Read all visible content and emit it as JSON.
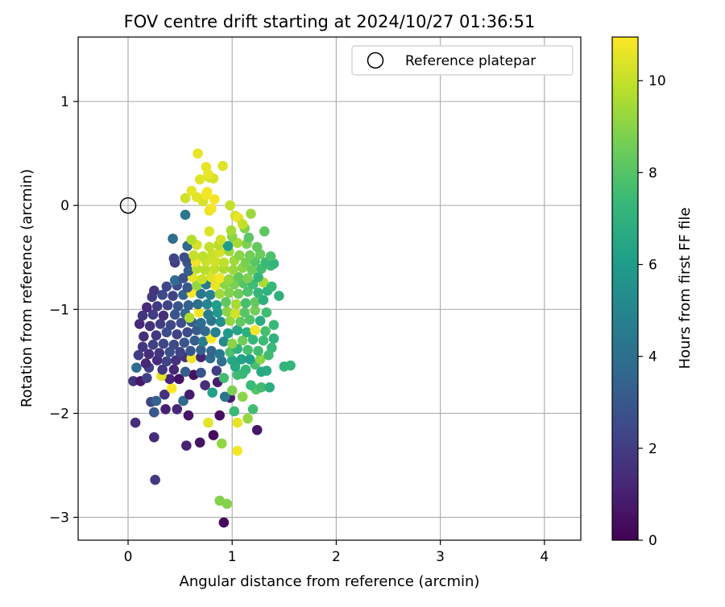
{
  "chart_data": {
    "type": "scatter",
    "title": "FOV centre drift starting at 2024/10/27 01:36:51",
    "xlabel": "Angular distance from reference (arcmin)",
    "ylabel": "Rotation from reference (arcmin)",
    "xlim": [
      -0.48,
      4.35
    ],
    "ylim": [
      -3.22,
      1.62
    ],
    "xticks": [
      0,
      1,
      2,
      3,
      4
    ],
    "yticks": [
      -3,
      -2,
      -1,
      0,
      1
    ],
    "grid": true,
    "legend": {
      "placement": "top-right",
      "entries": [
        "Reference platepar"
      ]
    },
    "reference_point": {
      "x": 0,
      "y": 0,
      "label": "Reference platepar"
    },
    "colorbar": {
      "label": "Hours from first FF file",
      "colormap": "viridis",
      "range": [
        0,
        10.95
      ],
      "ticks": [
        0,
        2,
        4,
        6,
        8,
        10
      ]
    },
    "points": [
      [
        0.92,
        -3.05,
        0.3
      ],
      [
        0.95,
        -2.87,
        8.9
      ],
      [
        0.88,
        -2.84,
        8.9
      ],
      [
        0.26,
        -2.64,
        1.9
      ],
      [
        1.05,
        -2.36,
        10.8
      ],
      [
        0.56,
        -2.31,
        1.1
      ],
      [
        0.69,
        -2.28,
        0.6
      ],
      [
        0.9,
        -2.29,
        9.1
      ],
      [
        0.25,
        -2.23,
        1.4
      ],
      [
        0.82,
        -2.21,
        0.3
      ],
      [
        1.24,
        -2.16,
        0.7
      ],
      [
        0.07,
        -2.09,
        1.5
      ],
      [
        1.05,
        -2.09,
        10.6
      ],
      [
        0.77,
        -2.09,
        10.5
      ],
      [
        1.15,
        -2.05,
        9.2
      ],
      [
        0.58,
        -2.02,
        0.6
      ],
      [
        0.88,
        -2.02,
        0.4
      ],
      [
        0.25,
        -1.99,
        3.0
      ],
      [
        0.36,
        -1.96,
        1.0
      ],
      [
        0.47,
        -1.96,
        1.2
      ],
      [
        1.02,
        -1.98,
        7.4
      ],
      [
        1.2,
        -1.96,
        7.6
      ],
      [
        0.22,
        -1.89,
        2.3
      ],
      [
        0.27,
        -1.88,
        3.5
      ],
      [
        0.53,
        -1.88,
        3.8
      ],
      [
        0.98,
        -1.85,
        0.8
      ],
      [
        1.1,
        -1.84,
        9.0
      ],
      [
        0.35,
        -1.82,
        1.6
      ],
      [
        0.59,
        -1.82,
        0.9
      ],
      [
        0.81,
        -1.8,
        6.2
      ],
      [
        0.93,
        -1.84,
        4.2
      ],
      [
        0.42,
        -1.76,
        10.9
      ],
      [
        1.23,
        -1.77,
        8.0
      ],
      [
        1.28,
        -1.75,
        7.6
      ],
      [
        1.36,
        -1.75,
        6.8
      ],
      [
        1.0,
        -1.78,
        8.8
      ],
      [
        1.18,
        -1.73,
        7.4
      ],
      [
        0.74,
        -1.73,
        1.5
      ],
      [
        0.86,
        -1.7,
        0.9
      ],
      [
        0.05,
        -1.69,
        1.7
      ],
      [
        0.12,
        -1.69,
        0.7
      ],
      [
        0.18,
        -1.66,
        2.1
      ],
      [
        0.4,
        -1.67,
        1.2
      ],
      [
        0.49,
        -1.67,
        0.5
      ],
      [
        0.63,
        -1.63,
        0.5
      ],
      [
        0.7,
        -1.61,
        2.8
      ],
      [
        0.92,
        -1.66,
        7.6
      ],
      [
        1.05,
        -1.63,
        7.6
      ],
      [
        1.1,
        -1.62,
        7.4
      ],
      [
        1.28,
        -1.6,
        6.6
      ],
      [
        1.33,
        -1.59,
        6.7
      ],
      [
        0.32,
        -1.64,
        10.5
      ],
      [
        0.08,
        -1.56,
        3.9
      ],
      [
        0.2,
        -1.56,
        2.2
      ],
      [
        0.33,
        -1.58,
        1.9
      ],
      [
        0.44,
        -1.58,
        1.3
      ],
      [
        0.55,
        -1.6,
        3.2
      ],
      [
        0.85,
        -1.59,
        2.0
      ],
      [
        1.03,
        -1.55,
        6.6
      ],
      [
        1.13,
        -1.58,
        7.3
      ],
      [
        1.22,
        -1.53,
        7.7
      ],
      [
        1.5,
        -1.55,
        7.2
      ],
      [
        1.56,
        -1.54,
        7.2
      ],
      [
        0.17,
        -1.52,
        1.2
      ],
      [
        0.28,
        -1.49,
        1.4
      ],
      [
        0.37,
        -1.5,
        2.3
      ],
      [
        0.46,
        -1.49,
        1.6
      ],
      [
        0.55,
        -1.46,
        1.7
      ],
      [
        0.61,
        -1.47,
        10.7
      ],
      [
        0.7,
        -1.46,
        1.2
      ],
      [
        0.79,
        -1.47,
        3.8
      ],
      [
        0.9,
        -1.5,
        4.0
      ],
      [
        1.0,
        -1.49,
        6.5
      ],
      [
        1.09,
        -1.48,
        6.3
      ],
      [
        1.17,
        -1.48,
        6.2
      ],
      [
        1.27,
        -1.48,
        9.0
      ],
      [
        1.35,
        -1.44,
        7.6
      ],
      [
        0.1,
        -1.44,
        2.0
      ],
      [
        0.2,
        -1.43,
        1.4
      ],
      [
        0.3,
        -1.42,
        1.7
      ],
      [
        0.4,
        -1.41,
        2.7
      ],
      [
        0.5,
        -1.41,
        2.2
      ],
      [
        0.6,
        -1.4,
        3.0
      ],
      [
        0.7,
        -1.39,
        3.4
      ],
      [
        0.8,
        -1.4,
        3.6
      ],
      [
        0.88,
        -1.43,
        4.4
      ],
      [
        0.98,
        -1.41,
        7.8
      ],
      [
        1.05,
        -1.38,
        7.0
      ],
      [
        1.15,
        -1.39,
        7.7
      ],
      [
        1.25,
        -1.4,
        7.6
      ],
      [
        1.38,
        -1.37,
        7.4
      ],
      [
        0.14,
        -1.36,
        1.8
      ],
      [
        0.24,
        -1.34,
        2.1
      ],
      [
        0.34,
        -1.33,
        2.3
      ],
      [
        0.44,
        -1.34,
        2.5
      ],
      [
        0.54,
        -1.32,
        2.9
      ],
      [
        0.64,
        -1.3,
        3.3
      ],
      [
        0.72,
        -1.31,
        4.6
      ],
      [
        0.8,
        -1.28,
        10.9
      ],
      [
        0.92,
        -1.31,
        5.2
      ],
      [
        1.0,
        -1.33,
        9.0
      ],
      [
        1.1,
        -1.3,
        8.5
      ],
      [
        1.2,
        -1.29,
        7.3
      ],
      [
        1.3,
        -1.3,
        7.5
      ],
      [
        1.4,
        -1.28,
        7.0
      ],
      [
        0.15,
        -1.26,
        1.5
      ],
      [
        0.27,
        -1.25,
        1.8
      ],
      [
        0.37,
        -1.22,
        2.6
      ],
      [
        0.47,
        -1.24,
        2.2
      ],
      [
        0.57,
        -1.22,
        2.5
      ],
      [
        0.66,
        -1.2,
        3.1
      ],
      [
        0.74,
        -1.21,
        3.8
      ],
      [
        0.84,
        -1.22,
        4.8
      ],
      [
        0.96,
        -1.23,
        6.0
      ],
      [
        1.05,
        -1.2,
        6.4
      ],
      [
        1.14,
        -1.22,
        6.9
      ],
      [
        1.22,
        -1.2,
        10.8
      ],
      [
        1.32,
        -1.21,
        7.7
      ],
      [
        1.4,
        -1.15,
        7.4
      ],
      [
        0.11,
        -1.14,
        1.3
      ],
      [
        0.21,
        -1.16,
        1.6
      ],
      [
        0.31,
        -1.14,
        2.0
      ],
      [
        0.41,
        -1.15,
        2.4
      ],
      [
        0.51,
        -1.13,
        2.6
      ],
      [
        0.61,
        -1.12,
        3.2
      ],
      [
        0.7,
        -1.13,
        3.9
      ],
      [
        0.8,
        -1.11,
        4.3
      ],
      [
        0.89,
        -1.12,
        5.4
      ],
      [
        0.98,
        -1.11,
        9.2
      ],
      [
        1.08,
        -1.12,
        8.3
      ],
      [
        1.17,
        -1.1,
        7.9
      ],
      [
        1.27,
        -1.11,
        6.7
      ],
      [
        0.14,
        -1.06,
        1.7
      ],
      [
        0.24,
        -1.05,
        2.0
      ],
      [
        0.34,
        -1.06,
        1.5
      ],
      [
        0.45,
        -1.05,
        2.8
      ],
      [
        0.55,
        -1.04,
        3.6
      ],
      [
        0.59,
        -1.08,
        9.7
      ],
      [
        0.68,
        -1.03,
        10.8
      ],
      [
        0.77,
        -1.05,
        4.7
      ],
      [
        0.86,
        -1.03,
        5.9
      ],
      [
        0.95,
        -1.02,
        9.0
      ],
      [
        1.03,
        -1.04,
        10.2
      ],
      [
        1.12,
        -1.03,
        8.1
      ],
      [
        1.22,
        -1.01,
        8.6
      ],
      [
        1.33,
        -1.03,
        7.6
      ],
      [
        0.18,
        -0.98,
        1.3
      ],
      [
        0.28,
        -0.97,
        1.9
      ],
      [
        0.38,
        -0.96,
        2.3
      ],
      [
        0.48,
        -0.97,
        2.9
      ],
      [
        0.58,
        -0.96,
        3.4
      ],
      [
        0.67,
        -0.95,
        4.0
      ],
      [
        0.76,
        -0.95,
        5.0
      ],
      [
        0.85,
        -0.96,
        6.1
      ],
      [
        0.94,
        -0.93,
        8.2
      ],
      [
        1.04,
        -0.95,
        9.5
      ],
      [
        1.13,
        -0.94,
        7.7
      ],
      [
        1.22,
        -0.93,
        8.3
      ],
      [
        1.3,
        -0.91,
        6.9
      ],
      [
        0.23,
        -0.88,
        1.9
      ],
      [
        0.33,
        -0.86,
        2.5
      ],
      [
        0.43,
        -0.87,
        2.2
      ],
      [
        0.53,
        -0.86,
        3.5
      ],
      [
        0.61,
        -0.84,
        10.9
      ],
      [
        0.7,
        -0.85,
        4.4
      ],
      [
        0.79,
        -0.86,
        4.9
      ],
      [
        0.88,
        -0.85,
        9.4
      ],
      [
        0.97,
        -0.84,
        8.9
      ],
      [
        1.06,
        -0.85,
        8.5
      ],
      [
        1.15,
        -0.83,
        7.9
      ],
      [
        1.25,
        -0.84,
        7.2
      ],
      [
        1.34,
        -0.82,
        7.0
      ],
      [
        1.45,
        -0.87,
        6.9
      ],
      [
        0.25,
        -0.82,
        1.7
      ],
      [
        0.37,
        -0.78,
        2.4
      ],
      [
        0.47,
        -0.77,
        2.6
      ],
      [
        0.57,
        -0.79,
        3.0
      ],
      [
        0.66,
        -0.77,
        9.2
      ],
      [
        0.75,
        -0.76,
        4.5
      ],
      [
        0.84,
        -0.77,
        10.6
      ],
      [
        0.93,
        -0.76,
        9.0
      ],
      [
        1.02,
        -0.76,
        8.7
      ],
      [
        1.11,
        -0.75,
        8.0
      ],
      [
        1.2,
        -0.76,
        7.5
      ],
      [
        1.3,
        -0.74,
        9.6
      ],
      [
        1.38,
        -0.78,
        7.3
      ],
      [
        0.45,
        -0.72,
        3.9
      ],
      [
        0.53,
        -0.7,
        2.8
      ],
      [
        0.62,
        -0.69,
        10.6
      ],
      [
        0.71,
        -0.71,
        10.1
      ],
      [
        0.8,
        -0.69,
        10.4
      ],
      [
        0.88,
        -0.7,
        10.8
      ],
      [
        0.97,
        -0.71,
        9.2
      ],
      [
        1.06,
        -0.69,
        8.3
      ],
      [
        1.15,
        -0.7,
        8.8
      ],
      [
        1.25,
        -0.69,
        7.2
      ],
      [
        0.58,
        -0.63,
        3.3
      ],
      [
        0.66,
        -0.61,
        9.8
      ],
      [
        0.74,
        -0.62,
        9.8
      ],
      [
        0.83,
        -0.61,
        10.0
      ],
      [
        0.92,
        -0.61,
        9.6
      ],
      [
        1.01,
        -0.62,
        9.3
      ],
      [
        1.1,
        -0.6,
        9.0
      ],
      [
        1.19,
        -0.62,
        8.5
      ],
      [
        1.28,
        -0.61,
        7.6
      ],
      [
        1.37,
        -0.58,
        7.6
      ],
      [
        0.45,
        -0.55,
        2.0
      ],
      [
        0.57,
        -0.55,
        3.0
      ],
      [
        0.65,
        -0.54,
        10.7
      ],
      [
        0.75,
        -0.54,
        10.1
      ],
      [
        0.84,
        -0.54,
        10.2
      ],
      [
        0.92,
        -0.55,
        9.9
      ],
      [
        1.02,
        -0.53,
        9.4
      ],
      [
        1.13,
        -0.55,
        8.7
      ],
      [
        1.22,
        -0.54,
        8.1
      ],
      [
        1.32,
        -0.55,
        7.4
      ],
      [
        1.4,
        -0.56,
        7.2
      ],
      [
        0.44,
        -0.51,
        2.3
      ],
      [
        0.54,
        -0.5,
        2.6
      ],
      [
        0.63,
        -0.48,
        10.0
      ],
      [
        0.72,
        -0.49,
        9.9
      ],
      [
        0.81,
        -0.47,
        10.1
      ],
      [
        0.88,
        -0.45,
        10.3
      ],
      [
        0.97,
        -0.44,
        9.4
      ],
      [
        1.07,
        -0.48,
        9.0
      ],
      [
        1.17,
        -0.48,
        8.6
      ],
      [
        1.27,
        -0.47,
        8.4
      ],
      [
        1.37,
        -0.49,
        7.8
      ],
      [
        0.57,
        -0.39,
        3.6
      ],
      [
        0.66,
        -0.38,
        10.3
      ],
      [
        0.78,
        -0.4,
        10.0
      ],
      [
        0.87,
        -0.38,
        9.8
      ],
      [
        0.96,
        -0.39,
        6.0
      ],
      [
        1.05,
        -0.36,
        9.5
      ],
      [
        1.14,
        -0.37,
        8.8
      ],
      [
        1.24,
        -0.4,
        8.3
      ],
      [
        0.43,
        -0.32,
        3.9
      ],
      [
        0.61,
        -0.33,
        9.7
      ],
      [
        0.89,
        -0.33,
        10.2
      ],
      [
        1.0,
        -0.3,
        9.0
      ],
      [
        1.16,
        -0.31,
        8.1
      ],
      [
        1.31,
        -0.25,
        8.2
      ],
      [
        0.78,
        -0.25,
        10.4
      ],
      [
        0.99,
        -0.24,
        9.5
      ],
      [
        1.12,
        -0.22,
        8.9
      ],
      [
        0.55,
        -0.09,
        4.3
      ],
      [
        1.03,
        -0.1,
        10.3
      ],
      [
        1.06,
        -0.12,
        10.6
      ],
      [
        1.1,
        -0.18,
        10.0
      ],
      [
        1.18,
        -0.08,
        9.3
      ],
      [
        0.78,
        -0.05,
        10.6
      ],
      [
        0.8,
        -0.03,
        10.8
      ],
      [
        0.72,
        0.04,
        10.3
      ],
      [
        0.98,
        0.0,
        10.0
      ],
      [
        0.55,
        0.07,
        10.2
      ],
      [
        0.66,
        0.08,
        10.5
      ],
      [
        0.75,
        0.1,
        10.8
      ],
      [
        0.83,
        0.06,
        10.8
      ],
      [
        0.61,
        0.14,
        10.6
      ],
      [
        0.76,
        0.13,
        10.8
      ],
      [
        0.69,
        0.25,
        10.5
      ],
      [
        0.78,
        0.27,
        10.2
      ],
      [
        0.82,
        0.26,
        10.3
      ],
      [
        0.77,
        0.3,
        10.6
      ],
      [
        0.75,
        0.37,
        10.6
      ],
      [
        0.91,
        0.38,
        10.4
      ],
      [
        0.67,
        0.5,
        10.6
      ]
    ]
  }
}
